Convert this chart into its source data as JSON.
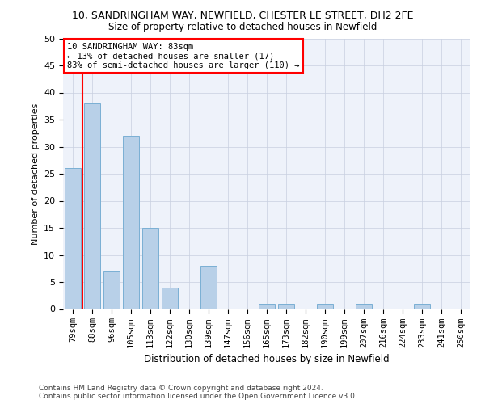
{
  "title_main": "10, SANDRINGHAM WAY, NEWFIELD, CHESTER LE STREET, DH2 2FE",
  "title_sub": "Size of property relative to detached houses in Newfield",
  "xlabel": "Distribution of detached houses by size in Newfield",
  "ylabel": "Number of detached properties",
  "categories": [
    "79sqm",
    "88sqm",
    "96sqm",
    "105sqm",
    "113sqm",
    "122sqm",
    "130sqm",
    "139sqm",
    "147sqm",
    "156sqm",
    "165sqm",
    "173sqm",
    "182sqm",
    "190sqm",
    "199sqm",
    "207sqm",
    "216sqm",
    "224sqm",
    "233sqm",
    "241sqm",
    "250sqm"
  ],
  "values": [
    26,
    38,
    7,
    32,
    15,
    4,
    0,
    8,
    0,
    0,
    1,
    1,
    0,
    1,
    0,
    1,
    0,
    0,
    1,
    0,
    0
  ],
  "bar_color": "#b8d0e8",
  "bar_edge_color": "#7aafd4",
  "annotation_text": "10 SANDRINGHAM WAY: 83sqm\n← 13% of detached houses are smaller (17)\n83% of semi-detached houses are larger (110) →",
  "annotation_box_color": "white",
  "annotation_box_edge_color": "red",
  "vline_color": "red",
  "ylim": [
    0,
    50
  ],
  "yticks": [
    0,
    5,
    10,
    15,
    20,
    25,
    30,
    35,
    40,
    45,
    50
  ],
  "footer_line1": "Contains HM Land Registry data © Crown copyright and database right 2024.",
  "footer_line2": "Contains public sector information licensed under the Open Government Licence v3.0.",
  "bg_color": "#eef2fa",
  "grid_color": "#c8cfe0"
}
